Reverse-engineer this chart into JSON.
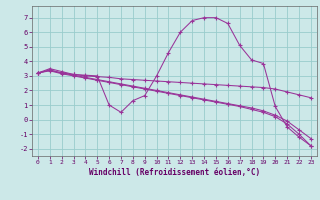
{
  "xlabel": "Windchill (Refroidissement éolien,°C)",
  "bg_color": "#cce8e8",
  "grid_color": "#99cccc",
  "line_color": "#993399",
  "xlim": [
    -0.5,
    23.5
  ],
  "ylim": [
    -2.5,
    7.8
  ],
  "yticks": [
    -2,
    -1,
    0,
    1,
    2,
    3,
    4,
    5,
    6,
    7
  ],
  "xticks": [
    0,
    1,
    2,
    3,
    4,
    5,
    6,
    7,
    8,
    9,
    10,
    11,
    12,
    13,
    14,
    15,
    16,
    17,
    18,
    19,
    20,
    21,
    22,
    23
  ],
  "series": [
    {
      "x": [
        0,
        1,
        2,
        3,
        4,
        5,
        6,
        7,
        8,
        9,
        10,
        11,
        12,
        13,
        14,
        15,
        16,
        17,
        18,
        19,
        20,
        21,
        22,
        23
      ],
      "y": [
        3.2,
        3.5,
        3.3,
        3.1,
        3.05,
        3.0,
        1.0,
        0.5,
        1.3,
        1.65,
        3.0,
        4.6,
        6.0,
        6.8,
        7.0,
        7.0,
        6.6,
        5.1,
        4.1,
        3.85,
        0.9,
        -0.5,
        -1.2,
        -1.8
      ]
    },
    {
      "x": [
        0,
        1,
        2,
        3,
        4,
        5,
        6,
        7,
        8,
        9,
        10,
        11,
        12,
        13,
        14,
        15,
        16,
        17,
        18,
        19,
        20,
        21,
        22,
        23
      ],
      "y": [
        3.2,
        3.4,
        3.2,
        3.1,
        3.0,
        2.95,
        2.9,
        2.8,
        2.75,
        2.7,
        2.65,
        2.6,
        2.55,
        2.5,
        2.45,
        2.4,
        2.35,
        2.3,
        2.25,
        2.2,
        2.1,
        1.9,
        1.7,
        1.5
      ]
    },
    {
      "x": [
        0,
        1,
        2,
        3,
        4,
        5,
        6,
        7,
        8,
        9,
        10,
        11,
        12,
        13,
        14,
        15,
        16,
        17,
        18,
        19,
        20,
        21,
        22,
        23
      ],
      "y": [
        3.2,
        3.35,
        3.15,
        3.0,
        2.85,
        2.7,
        2.55,
        2.4,
        2.25,
        2.1,
        1.95,
        1.8,
        1.65,
        1.5,
        1.35,
        1.2,
        1.05,
        0.9,
        0.7,
        0.5,
        0.2,
        -0.3,
        -1.0,
        -1.8
      ]
    },
    {
      "x": [
        0,
        1,
        2,
        3,
        4,
        5,
        6,
        7,
        8,
        9,
        10,
        11,
        12,
        13,
        14,
        15,
        16,
        17,
        18,
        19,
        20,
        21,
        22,
        23
      ],
      "y": [
        3.2,
        3.4,
        3.2,
        3.05,
        2.9,
        2.75,
        2.6,
        2.45,
        2.3,
        2.15,
        2.0,
        1.85,
        1.7,
        1.55,
        1.4,
        1.25,
        1.1,
        0.95,
        0.8,
        0.6,
        0.3,
        -0.1,
        -0.7,
        -1.3
      ]
    }
  ]
}
